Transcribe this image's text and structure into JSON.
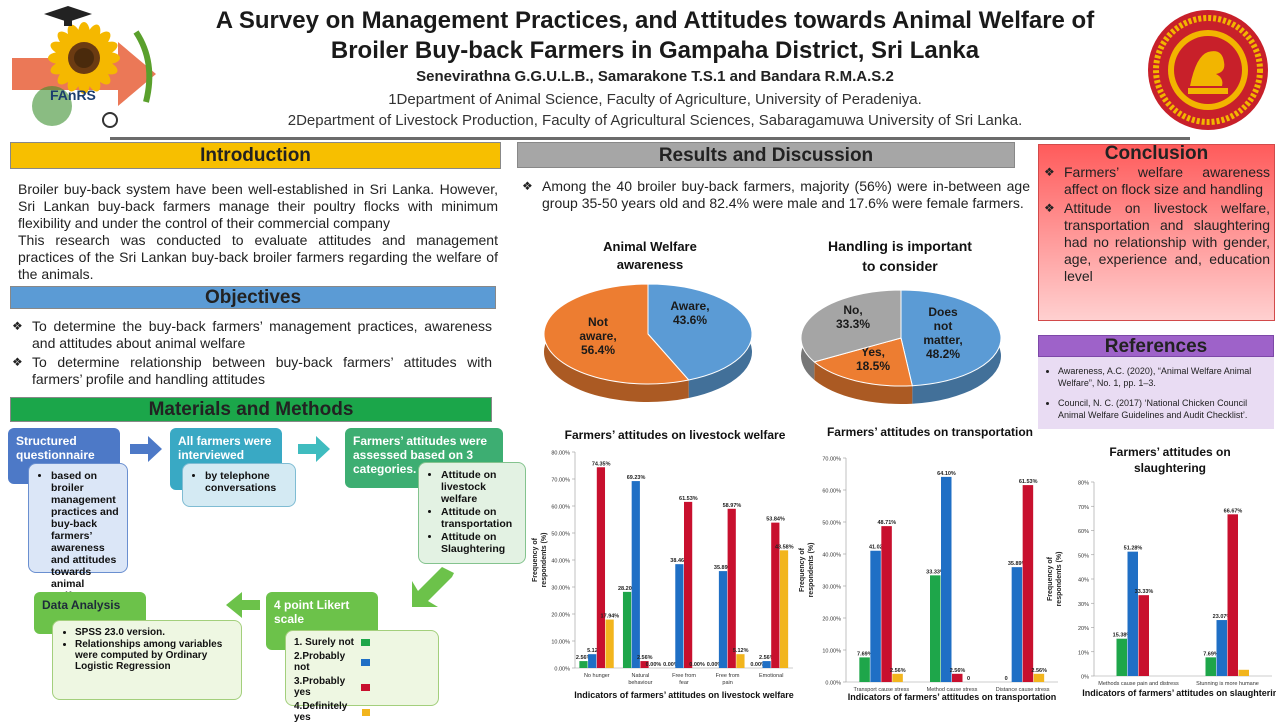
{
  "header": {
    "title_line1": "A Survey on Management Practices, and Attitudes towards Animal Welfare of",
    "title_line2": "Broiler Buy-back Farmers in Gampaha District, Sri Lanka",
    "authors": "Senevirathna G.G.U.L.B., Samarakone T.S.1 and Bandara R.M.A.S.2",
    "affiliation1": "1Department of Animal Science, Faculty of Agriculture, University of Peradeniya.",
    "affiliation2": "2Department of Livestock Production, Faculty of Agricultural Sciences, Sabaragamuwa University of Sri Lanka.",
    "logo_text": "FAnRS",
    "colors": {
      "logo_arrow": "#e8603a",
      "seal": "#c8202a",
      "seal_gold": "#f2b500"
    }
  },
  "introduction": {
    "heading": "Introduction",
    "para1": "Broiler buy-back system have been  well-established in Sri Lanka. However, Sri Lankan buy-back farmers manage their poultry flocks with minimum flexibility and under the control of their commercial company",
    "para2": "This research was conducted to evaluate attitudes and management practices of the Sri Lankan buy-back broiler farmers regarding the welfare of the animals.",
    "color": "#f7bf00"
  },
  "objectives": {
    "heading": "Objectives",
    "items": [
      "To determine the buy-back farmers’ management practices, awareness and attitudes about animal welfare",
      "To determine relationship between buy-back farmers’ attitudes with farmers’ profile and handling attitudes"
    ],
    "color": "#5b9bd5"
  },
  "methods": {
    "heading": "Materials and Methods",
    "color": "#1ba64a",
    "box1": "Structured questionnaire",
    "box1_sub": "based on broiler management practices and buy-back farmers’ awareness and attitudes towards animal welfare.",
    "box2": "All farmers were interviewed",
    "box2_sub": "by telephone conversations",
    "box3": "Farmers’ attitudes were assessed based on 3 categories.",
    "box3_sub": [
      "Attitude on livestock welfare",
      "Attitude on transportation",
      "Attitude on Slaughtering"
    ],
    "box4": "4 point Likert scale",
    "box4_sub": [
      "1. Surely not",
      "2.Probably not",
      "3.Probably yes",
      "4.Definitely yes"
    ],
    "box5": "Data Analysis",
    "box5_sub": [
      "SPSS 23.0 version.",
      "Relationships among variables were computed by Ordinary Logistic Regression"
    ]
  },
  "results": {
    "heading": "Results and Discussion",
    "color": "#a6a6a6",
    "bullet": "Among the 40 broiler buy-back farmers, majority (56%) were in-between age group 35-50 years old and 82.4% were male and 17.6% were female farmers."
  },
  "series_colors": [
    "#1ea64a",
    "#1f6fc5",
    "#c8102e",
    "#f2b51d"
  ],
  "chart_data": [
    {
      "type": "pie",
      "title_line1": "Animal Welfare",
      "title_line2": "awareness",
      "slices": [
        {
          "label": "Aware,",
          "value_label": "43.6%",
          "value": 43.6,
          "color": "#5b9bd5"
        },
        {
          "label": "Not aware,",
          "value_label": "56.4%",
          "value": 56.4,
          "color": "#ed7d31"
        }
      ]
    },
    {
      "type": "pie",
      "title_line1": "Handling is important",
      "title_line2": "to consider",
      "slices": [
        {
          "label": "Does not matter,",
          "value_label": "48.2%",
          "value": 48.2,
          "color": "#5b9bd5"
        },
        {
          "label": "Yes,",
          "value_label": "18.5%",
          "value": 18.5,
          "color": "#ed7d31"
        },
        {
          "label": "No,",
          "value_label": "33.3%",
          "value": 33.3,
          "color": "#a5a5a5"
        }
      ]
    },
    {
      "type": "bar",
      "title": "Farmers’ attitudes on livestock welfare",
      "xlabel": "Indicators of farmers’ attitudes on livestock welfare",
      "ylabel": "Frequency of respondents (%)",
      "ylim": [
        0,
        80
      ],
      "yticks": [
        "0.00%",
        "10.00%",
        "20.00%",
        "30.00%",
        "40.00%",
        "50.00%",
        "60.00%",
        "70.00%",
        "80.00%"
      ],
      "categories": [
        "No hunger",
        "Natural behaviour",
        "Free from fear",
        "Free from pain",
        "Emotional"
      ],
      "series": [
        {
          "values": [
            2.56,
            28.2,
            0,
            0,
            0
          ],
          "labels": [
            "2.56%",
            "28.20%",
            "0.00%",
            "0.00%",
            "0.00%"
          ]
        },
        {
          "values": [
            5.12,
            69.23,
            38.46,
            35.89,
            2.56
          ],
          "labels": [
            "5.12",
            "69.23%",
            "38.46%",
            "35.89%",
            "2.56%"
          ]
        },
        {
          "values": [
            74.35,
            2.56,
            61.53,
            58.97,
            53.84
          ],
          "labels": [
            "74.35%",
            "2.56%",
            "61.53%",
            "58.97%",
            "53.84%"
          ]
        },
        {
          "values": [
            17.94,
            0,
            0,
            5.12,
            43.58
          ],
          "labels": [
            "17.94%",
            "0.00%",
            "0.00%",
            "5.12%",
            "43.58%"
          ]
        }
      ]
    },
    {
      "type": "bar",
      "title": "Farmers’ attitudes on transportation",
      "xlabel": "Indicators of farmers’ attitudes on transportation",
      "ylabel": "Frequency of respondents (%)",
      "ylim": [
        0,
        70
      ],
      "yticks": [
        "0.00%",
        "10.00%",
        "20.00%",
        "30.00%",
        "40.00%",
        "50.00%",
        "60.00%",
        "70.00%"
      ],
      "categories": [
        "Transport cause stress",
        "Method cause stress",
        "Distance cause stress"
      ],
      "series": [
        {
          "values": [
            7.69,
            33.33,
            0
          ],
          "labels": [
            "7.69%",
            "33.33%",
            "0"
          ]
        },
        {
          "values": [
            41.02,
            64.1,
            35.89
          ],
          "labels": [
            "41.02",
            "64.10%",
            "35.89%"
          ]
        },
        {
          "values": [
            48.71,
            2.56,
            61.53
          ],
          "labels": [
            "48.71%",
            "2.56%",
            "61.53%"
          ]
        },
        {
          "values": [
            2.56,
            0,
            2.56
          ],
          "labels": [
            "2.56%",
            "0",
            "2.56%"
          ]
        }
      ]
    },
    {
      "type": "bar",
      "title_line1": "Farmers’ attitudes on",
      "title_line2": "slaughtering",
      "xlabel": "Indicators of farmers’ attitudes on slaughtering",
      "ylabel": "Frequency of respondents (%)",
      "ylim": [
        0,
        80
      ],
      "yticks": [
        "0%",
        "10%",
        "20%",
        "30%",
        "40%",
        "50%",
        "60%",
        "70%",
        "80%"
      ],
      "categories": [
        "Methods cause pain and distress",
        "Stunning is more humane"
      ],
      "series": [
        {
          "values": [
            15.38,
            7.69
          ],
          "labels": [
            "15.38%",
            "7.69%"
          ]
        },
        {
          "values": [
            51.28,
            23.07
          ],
          "labels": [
            "51.28%",
            "23.07%"
          ]
        },
        {
          "values": [
            33.33,
            66.67
          ],
          "labels": [
            "33.33%",
            "66.67%"
          ]
        },
        {
          "values": [
            0,
            2.56
          ],
          "labels": [
            "",
            ""
          ]
        }
      ]
    }
  ],
  "conclusion": {
    "heading": "Conclusion",
    "color": "#ff5b5b",
    "items": [
      "Farmers’ welfare awareness affect on flock size and handling",
      "Attitude on livestock welfare, transportation and slaughtering had no relationship with gender, age, experience and, education level"
    ]
  },
  "references": {
    "heading": "References",
    "color": "#9e62c9",
    "items": [
      "Awareness, A.C. (2020), “Animal Welfare Animal Welfare”, No. 1, pp. 1–3.",
      "Council, N. C. (2017) ‘National Chicken Council Animal Welfare Guidelines and Audit Checklist’."
    ]
  }
}
